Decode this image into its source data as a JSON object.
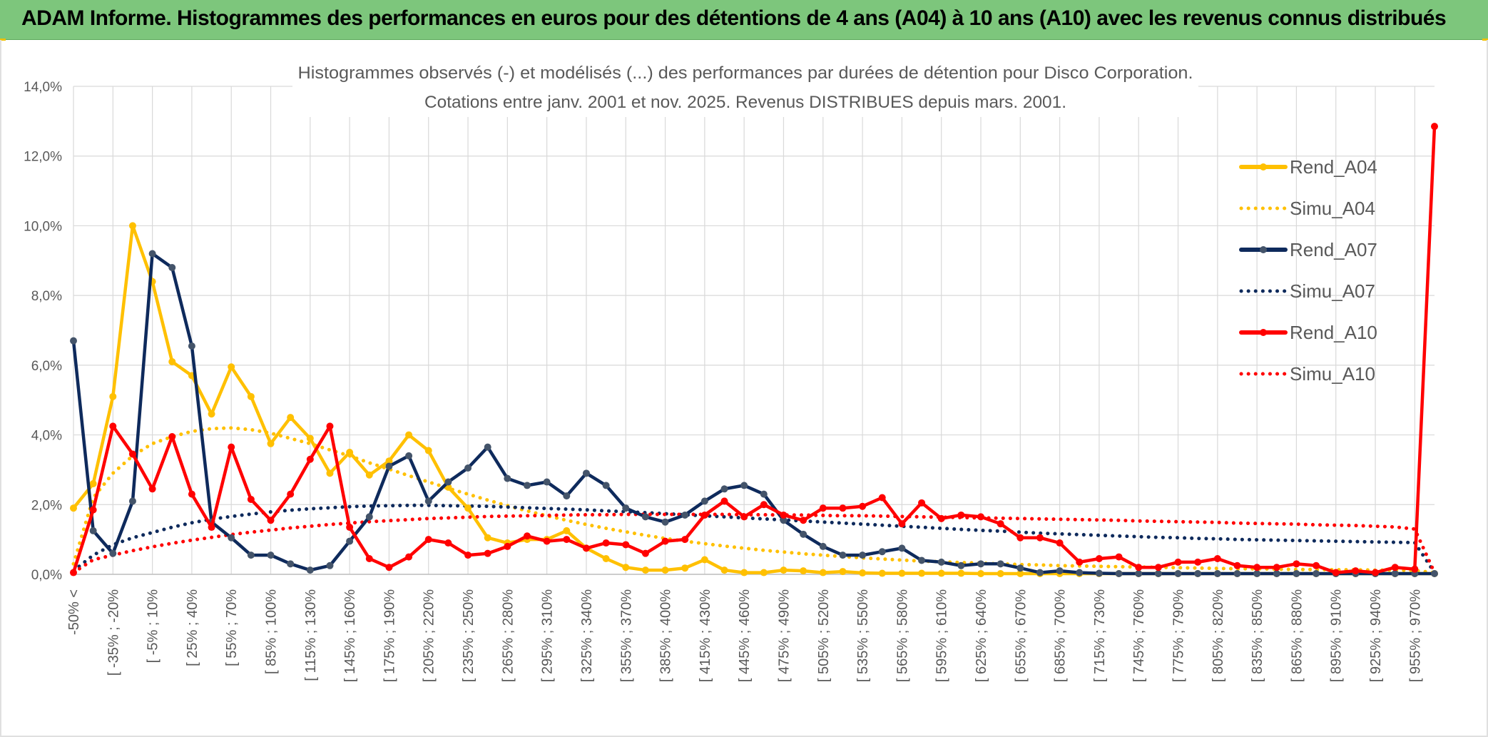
{
  "banner": {
    "title": "ADAM Informe. Histogrammes des performances en euros pour des détentions de 4 ans (A04) à 10 ans (A10) avec les revenus connus distribués"
  },
  "colors": {
    "banner_bg": "#7dc67c",
    "yellow": "#ffc000",
    "navy": "#0e2a5c",
    "red": "#ff0000",
    "grid": "#d9d9d9",
    "text": "#595959"
  },
  "chart_data": {
    "type": "line",
    "title": "Histogrammes observés (-) et modélisés (...) des performances par durées de détention pour Disco Corporation.",
    "subtitle": "Cotations entre janv. 2001 et nov. 2025. Revenus DISTRIBUES depuis mars. 2001.",
    "xlabel": "",
    "ylabel": "",
    "ylim": [
      0,
      14
    ],
    "y_ticks": [
      "0,0%",
      "2,0%",
      "4,0%",
      "6,0%",
      "8,0%",
      "10,0%",
      "12,0%",
      "14,0%"
    ],
    "grid": true,
    "legend_position": "right",
    "x_tick_labels": [
      "-50% <",
      "[ -35% ; -20%",
      "[ -5% ; 10%",
      "[ 25% ; 40%",
      "[ 55% ; 70%",
      "[ 85% ; 100%",
      "[ 115% ; 130%",
      "[ 145% ; 160%",
      "[ 175% ; 190%",
      "[ 205% ; 220%",
      "[ 235% ; 250%",
      "[ 265% ; 280%",
      "[ 295% ; 310%",
      "[ 325% ; 340%",
      "[ 355% ; 370%",
      "[ 385% ; 400%",
      "[ 415% ; 430%",
      "[ 445% ; 460%",
      "[ 475% ; 490%",
      "[ 505% ; 520%",
      "[ 535% ; 550%",
      "[ 565% ; 580%",
      "[ 595% ; 610%",
      "[ 625% ; 640%",
      "[ 655% ; 670%",
      "[ 685% ; 700%",
      "[ 715% ; 730%",
      "[ 745% ; 760%",
      "[ 775% ; 790%",
      "[ 805% ; 820%",
      "[ 835% ; 850%",
      "[ 865% ; 880%",
      "[ 895% ; 910%",
      "[ 925% ; 940%",
      "[ 955% ; 970%"
    ],
    "n_bins": 70,
    "series": [
      {
        "name": "Rend_A04",
        "style": "solid",
        "color": "#ffc000",
        "values": [
          1.9,
          2.6,
          5.1,
          10.0,
          8.4,
          6.1,
          5.7,
          4.6,
          5.95,
          5.1,
          3.75,
          4.5,
          3.9,
          2.9,
          3.5,
          2.85,
          3.25,
          4.0,
          3.55,
          2.5,
          1.9,
          1.05,
          0.9,
          1.0,
          1.0,
          1.25,
          0.75,
          0.45,
          0.2,
          0.12,
          0.12,
          0.18,
          0.42,
          0.12,
          0.05,
          0.05,
          0.12,
          0.1,
          0.05,
          0.08,
          0.04,
          0.03,
          0.03,
          0.03,
          0.03,
          0.03,
          0.02,
          0.02,
          0.02,
          0.02,
          0.02,
          0.02,
          0.02,
          0.02,
          0.02,
          0.02,
          0.02,
          0.02,
          0.02,
          0.02,
          0.02,
          0.02,
          0.02,
          0.02,
          0.02,
          0.02,
          0.02,
          0.02,
          0.02,
          0.02
        ]
      },
      {
        "name": "Simu_A04",
        "style": "dotted",
        "color": "#ffc000",
        "values": [
          0.3,
          2.2,
          2.9,
          3.4,
          3.75,
          3.95,
          4.1,
          4.18,
          4.2,
          4.15,
          4.05,
          3.9,
          3.75,
          3.57,
          3.4,
          3.2,
          3.02,
          2.83,
          2.65,
          2.47,
          2.3,
          2.13,
          1.97,
          1.82,
          1.68,
          1.55,
          1.43,
          1.32,
          1.22,
          1.12,
          1.03,
          0.95,
          0.88,
          0.81,
          0.75,
          0.69,
          0.64,
          0.59,
          0.55,
          0.51,
          0.47,
          0.44,
          0.41,
          0.38,
          0.36,
          0.34,
          0.32,
          0.3,
          0.28,
          0.27,
          0.25,
          0.24,
          0.23,
          0.22,
          0.21,
          0.2,
          0.19,
          0.18,
          0.17,
          0.16,
          0.16,
          0.15,
          0.14,
          0.14,
          0.13,
          0.13,
          0.12,
          0.12,
          0.11,
          0.05
        ]
      },
      {
        "name": "Rend_A07",
        "style": "solid",
        "color": "#0e2a5c",
        "values": [
          6.7,
          1.25,
          0.6,
          2.1,
          9.2,
          8.8,
          6.55,
          1.5,
          1.05,
          0.55,
          0.55,
          0.3,
          0.12,
          0.25,
          0.95,
          1.65,
          3.1,
          3.4,
          2.1,
          2.65,
          3.05,
          3.65,
          2.75,
          2.55,
          2.65,
          2.25,
          2.9,
          2.55,
          1.9,
          1.65,
          1.5,
          1.7,
          2.1,
          2.45,
          2.55,
          2.3,
          1.55,
          1.15,
          0.8,
          0.55,
          0.55,
          0.65,
          0.75,
          0.4,
          0.35,
          0.25,
          0.3,
          0.3,
          0.18,
          0.05,
          0.1,
          0.05,
          0.03,
          0.02,
          0.02,
          0.02,
          0.02,
          0.02,
          0.02,
          0.02,
          0.02,
          0.02,
          0.02,
          0.02,
          0.02,
          0.02,
          0.02,
          0.02,
          0.02,
          0.02
        ]
      },
      {
        "name": "Simu_A07",
        "style": "dotted",
        "color": "#0e2a5c",
        "values": [
          0.1,
          0.55,
          0.85,
          1.05,
          1.2,
          1.35,
          1.48,
          1.58,
          1.66,
          1.73,
          1.79,
          1.84,
          1.88,
          1.91,
          1.94,
          1.96,
          1.97,
          1.98,
          1.98,
          1.97,
          1.96,
          1.95,
          1.93,
          1.91,
          1.89,
          1.87,
          1.85,
          1.82,
          1.8,
          1.77,
          1.74,
          1.71,
          1.68,
          1.65,
          1.62,
          1.59,
          1.56,
          1.53,
          1.5,
          1.47,
          1.44,
          1.41,
          1.38,
          1.35,
          1.32,
          1.29,
          1.26,
          1.24,
          1.21,
          1.18,
          1.16,
          1.14,
          1.12,
          1.1,
          1.08,
          1.06,
          1.05,
          1.03,
          1.02,
          1.0,
          0.99,
          0.98,
          0.97,
          0.96,
          0.95,
          0.94,
          0.93,
          0.92,
          0.91,
          0.05
        ]
      },
      {
        "name": "Rend_A10",
        "style": "solid",
        "color": "#ff0000",
        "values": [
          0.05,
          1.85,
          4.25,
          3.45,
          2.45,
          3.95,
          2.3,
          1.35,
          3.65,
          2.15,
          1.55,
          2.3,
          3.3,
          4.25,
          1.35,
          0.45,
          0.2,
          0.5,
          1.0,
          0.9,
          0.55,
          0.6,
          0.8,
          1.1,
          0.95,
          1.0,
          0.75,
          0.9,
          0.85,
          0.6,
          0.95,
          1.0,
          1.7,
          2.1,
          1.65,
          2.0,
          1.7,
          1.55,
          1.9,
          1.9,
          1.95,
          2.2,
          1.45,
          2.05,
          1.6,
          1.7,
          1.65,
          1.45,
          1.05,
          1.05,
          0.9,
          0.35,
          0.45,
          0.5,
          0.2,
          0.2,
          0.35,
          0.35,
          0.45,
          0.25,
          0.2,
          0.2,
          0.3,
          0.25,
          0.05,
          0.1,
          0.05,
          0.2,
          0.15,
          12.85
        ]
      },
      {
        "name": "Simu_A10",
        "style": "dotted",
        "color": "#ff0000",
        "values": [
          0.05,
          0.42,
          0.55,
          0.68,
          0.79,
          0.89,
          0.98,
          1.06,
          1.14,
          1.21,
          1.27,
          1.33,
          1.38,
          1.43,
          1.47,
          1.51,
          1.54,
          1.57,
          1.6,
          1.62,
          1.64,
          1.66,
          1.67,
          1.68,
          1.69,
          1.7,
          1.71,
          1.71,
          1.72,
          1.72,
          1.72,
          1.72,
          1.72,
          1.72,
          1.71,
          1.71,
          1.7,
          1.7,
          1.69,
          1.68,
          1.68,
          1.67,
          1.66,
          1.65,
          1.64,
          1.63,
          1.62,
          1.61,
          1.6,
          1.59,
          1.58,
          1.57,
          1.56,
          1.55,
          1.53,
          1.52,
          1.51,
          1.5,
          1.49,
          1.47,
          1.46,
          1.45,
          1.44,
          1.42,
          1.41,
          1.4,
          1.38,
          1.36,
          1.3,
          0.05
        ]
      }
    ]
  }
}
